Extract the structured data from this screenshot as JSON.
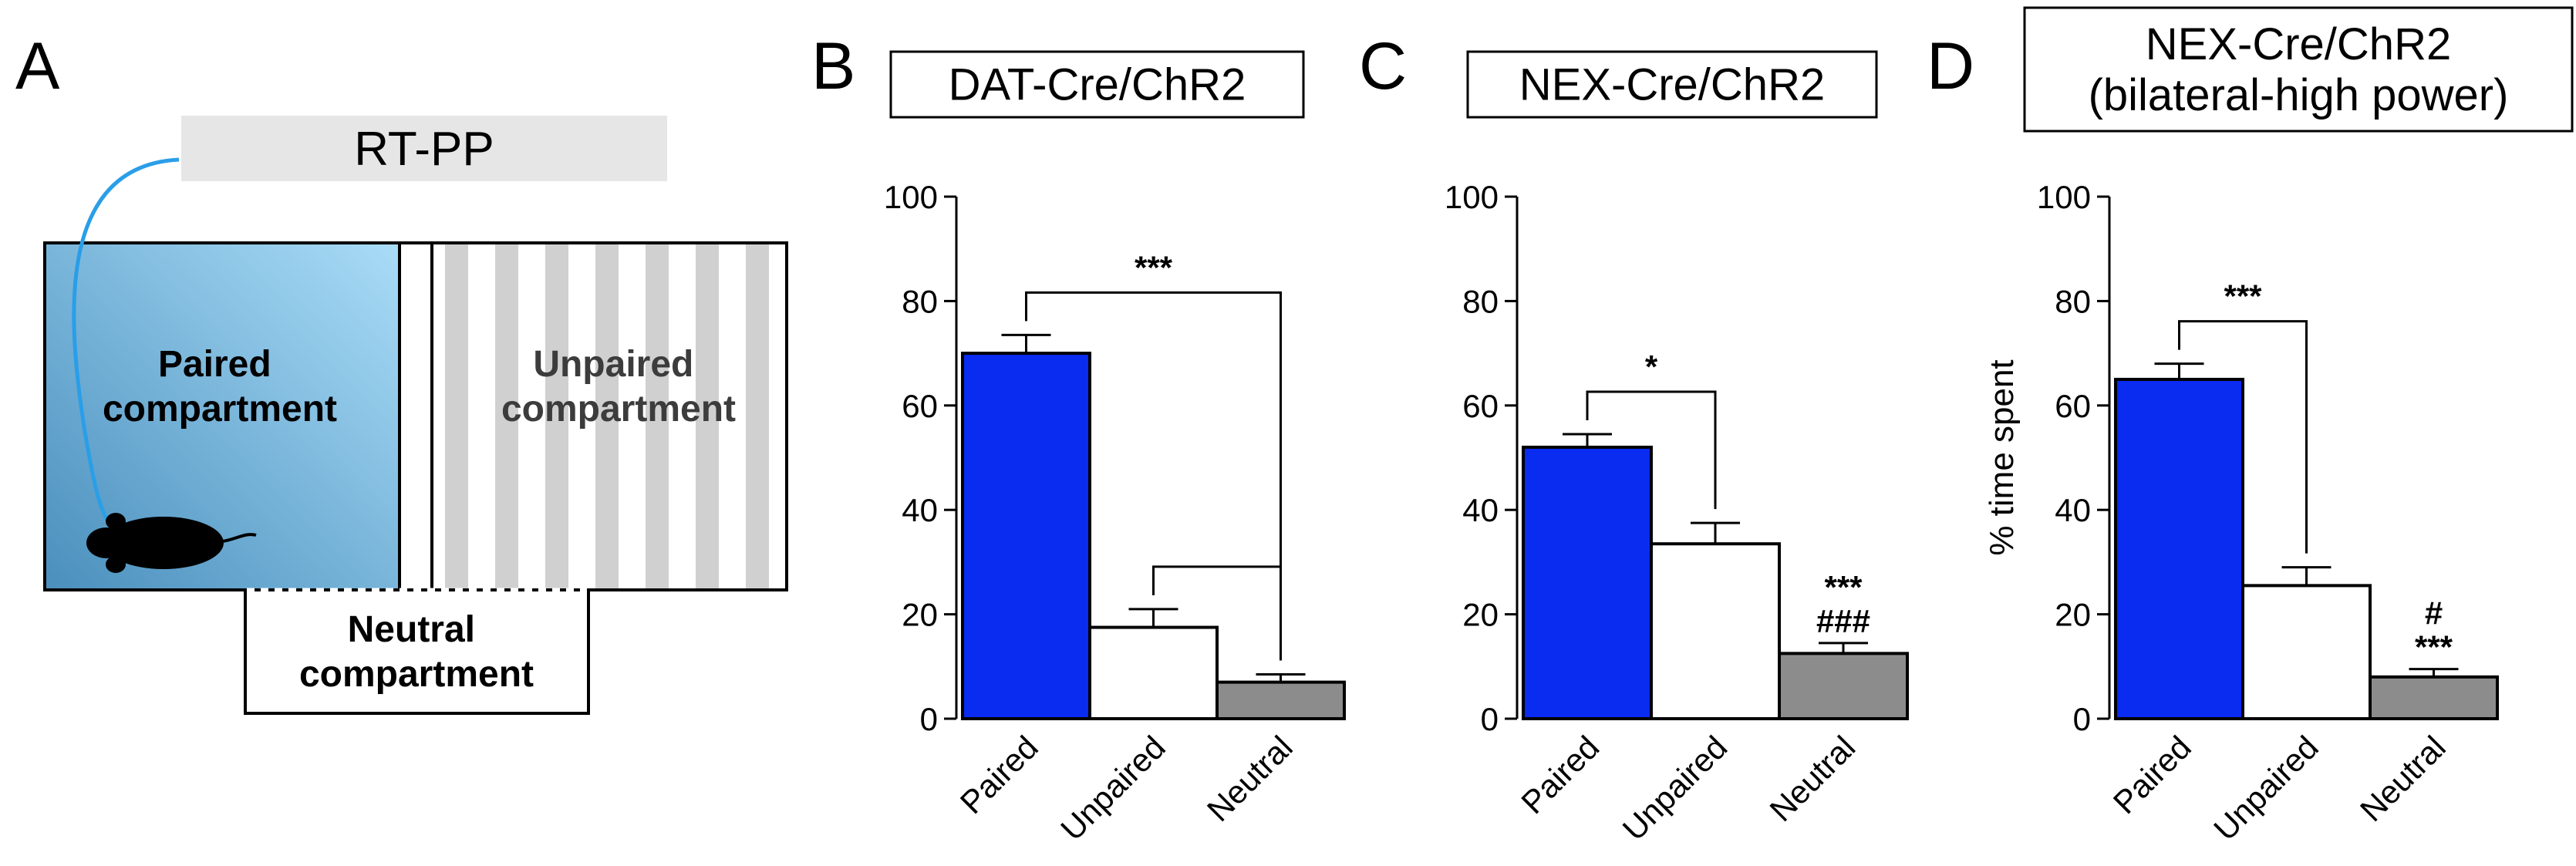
{
  "panels": {
    "a": "A",
    "b": "B",
    "c": "C",
    "d": "D"
  },
  "diagram": {
    "protocol_label": "RT-PP",
    "paired_label": [
      "Paired",
      "compartment"
    ],
    "unpaired_label": [
      "Unpaired",
      "compartment"
    ],
    "neutral_label": [
      "Neutral",
      "compartment"
    ],
    "colors": {
      "paired_fill_light": "#a9dcf7",
      "paired_fill_dark": "#4a8fbd",
      "stripe": "#d0d0d0",
      "cable": "#2a9ee8",
      "protocol_box": "#e6e6e6"
    },
    "icons": [
      "mouse-icon",
      "optic-fiber-cable"
    ]
  },
  "chart_data": [
    {
      "type": "bar",
      "title": [
        "DAT-Cre/ChR2"
      ],
      "categories": [
        "Paired",
        "Unpaired",
        "Neutral"
      ],
      "values": [
        70,
        17.5,
        7
      ],
      "errors": [
        3.5,
        3.5,
        1.5
      ],
      "colors": [
        "#0a2bf0",
        "#ffffff",
        "#8c8c8c"
      ],
      "ylim": [
        0,
        100
      ],
      "yticks": [
        "0",
        "20",
        "40",
        "60",
        "80",
        "100"
      ],
      "ylabel": "",
      "significance": [
        {
          "from": 0,
          "to": 2,
          "label": "***"
        },
        {
          "from": 1,
          "to": 2,
          "label": ""
        }
      ],
      "annotations": []
    },
    {
      "type": "bar",
      "title": [
        "NEX-Cre/ChR2"
      ],
      "categories": [
        "Paired",
        "Unpaired",
        "Neutral"
      ],
      "values": [
        52,
        33.5,
        12.5
      ],
      "errors": [
        2.5,
        4,
        2
      ],
      "colors": [
        "#0a2bf0",
        "#ffffff",
        "#8c8c8c"
      ],
      "ylim": [
        0,
        100
      ],
      "yticks": [
        "0",
        "20",
        "40",
        "60",
        "80",
        "100"
      ],
      "ylabel": "",
      "significance": [
        {
          "from": 0,
          "to": 1,
          "label": "*"
        }
      ],
      "annotations": [
        {
          "bar": 2,
          "lines": [
            "***",
            "###"
          ]
        }
      ]
    },
    {
      "type": "bar",
      "title": [
        "NEX-Cre/ChR2",
        "(bilateral-high power)"
      ],
      "categories": [
        "Paired",
        "Unpaired",
        "Neutral"
      ],
      "values": [
        65,
        25.5,
        8
      ],
      "errors": [
        3,
        3.5,
        1.5
      ],
      "colors": [
        "#0a2bf0",
        "#ffffff",
        "#8c8c8c"
      ],
      "ylim": [
        0,
        100
      ],
      "yticks": [
        "0",
        "20",
        "40",
        "60",
        "80",
        "100"
      ],
      "ylabel": "% time spent",
      "significance": [
        {
          "from": 0,
          "to": 1,
          "label": "***"
        }
      ],
      "annotations": [
        {
          "bar": 2,
          "lines": [
            "#",
            "***"
          ]
        }
      ]
    }
  ]
}
